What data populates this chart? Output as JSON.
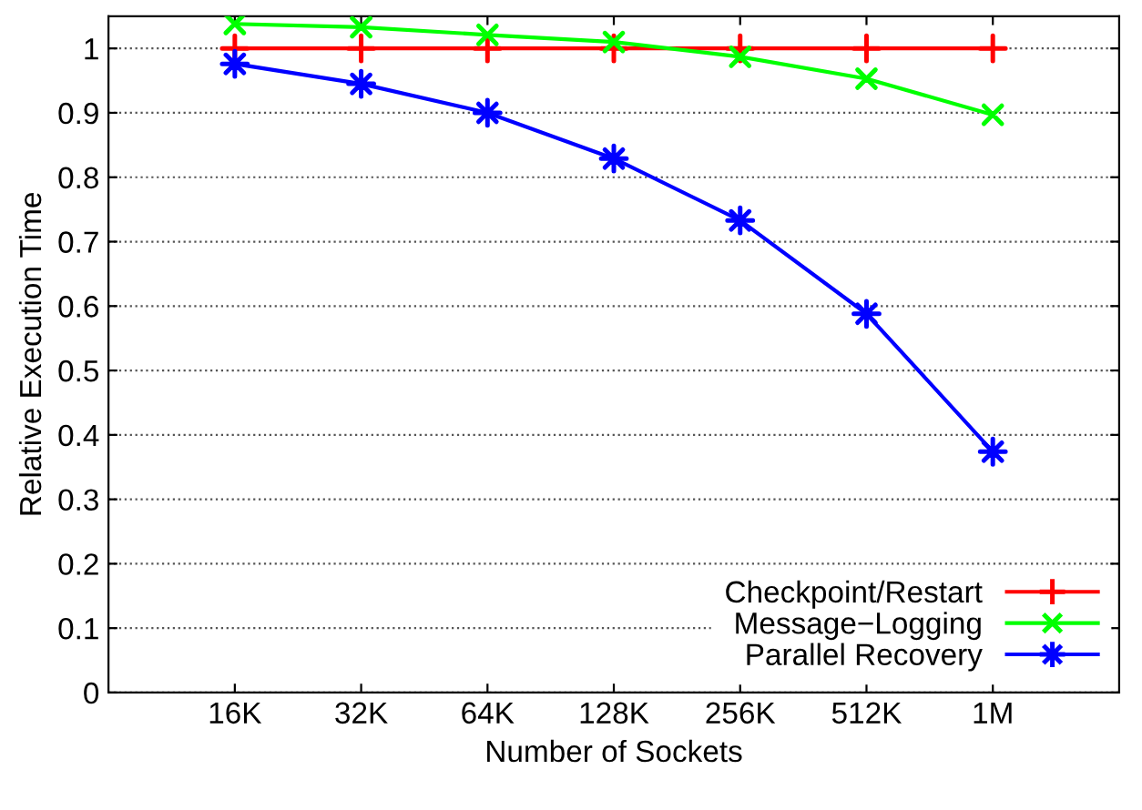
{
  "chart_data": {
    "type": "line",
    "xlabel": "Number of Sockets",
    "ylabel": "Relative Execution Time",
    "categories": [
      "16K",
      "32K",
      "64K",
      "128K",
      "256K",
      "512K",
      "1M"
    ],
    "series": [
      {
        "name": "Checkpoint/Restart",
        "color": "#ff0000",
        "marker": "plus",
        "values": [
          1,
          1,
          1,
          1,
          1,
          1,
          1
        ]
      },
      {
        "name": "Message−Logging",
        "color": "#00ff00",
        "marker": "cross",
        "values": [
          1.038,
          1.033,
          1.021,
          1.01,
          0.987,
          0.953,
          0.897
        ]
      },
      {
        "name": "Parallel Recovery",
        "color": "#0000ff",
        "marker": "star",
        "values": [
          0.976,
          0.945,
          0.9,
          0.829,
          0.733,
          0.588,
          0.374
        ]
      }
    ],
    "ylim": [
      0,
      1.05
    ],
    "yticks": [
      0,
      0.1,
      0.2,
      0.3,
      0.4,
      0.5,
      0.6,
      0.7,
      0.8,
      0.9,
      1
    ],
    "grid": "y",
    "legend": "bottom right",
    "line_style": "solid"
  }
}
